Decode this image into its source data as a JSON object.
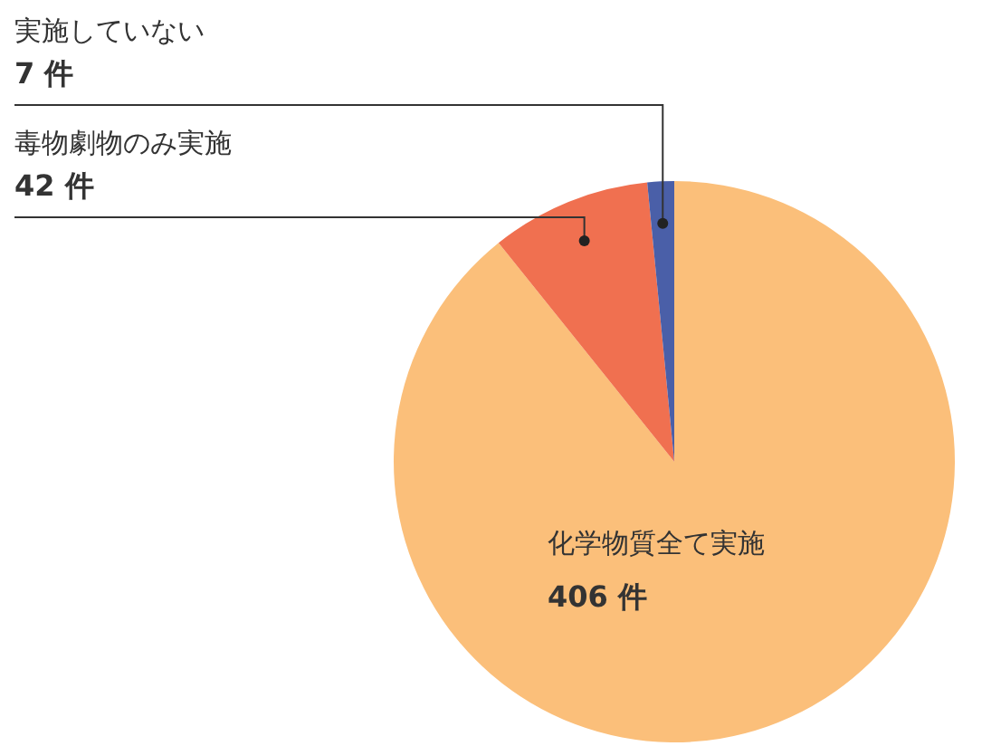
{
  "chart_data": {
    "type": "pie",
    "categories": [
      "化学物質全て実施",
      "毒物劇物のみ実施",
      "実施していない"
    ],
    "values": [
      406,
      42,
      7
    ],
    "colors": [
      "#fbbf7a",
      "#f07050",
      "#4a5fa8"
    ],
    "value_labels": [
      "406 件",
      "42 件",
      "7 件"
    ],
    "legend": false
  }
}
